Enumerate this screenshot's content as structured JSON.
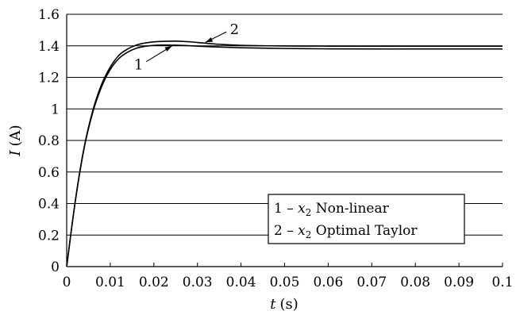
{
  "chart_data": {
    "type": "line",
    "title": "",
    "xlabel": "t (s)",
    "xlabel_italic": "t",
    "xlabel_unit": "(s)",
    "ylabel": "I (A)",
    "ylabel_italic": "I",
    "ylabel_unit": "(A)",
    "xlim": [
      0,
      0.1
    ],
    "ylim": [
      0,
      1.6
    ],
    "xticks": [
      0,
      0.01,
      0.02,
      0.03,
      0.04,
      0.05,
      0.06,
      0.07,
      0.08,
      0.09,
      0.1
    ],
    "xtick_labels": [
      "0",
      "0.01",
      "0.02",
      "0.03",
      "0.04",
      "0.05",
      "0.06",
      "0.07",
      "0.08",
      "0.09",
      "0.1"
    ],
    "yticks": [
      0,
      0.2,
      0.4,
      0.6,
      0.8,
      1,
      1.2,
      1.4,
      1.6
    ],
    "ytick_labels": [
      "0",
      "0.2",
      "0.4",
      "0.6",
      "0.8",
      "1",
      "1.2",
      "1.4",
      "1.6"
    ],
    "grid": "horizontal",
    "legend_position": "lower-right",
    "series": [
      {
        "name": "1 – x2 Non-linear",
        "label": "1",
        "legend_prefix": "1 –",
        "legend_var": "x",
        "legend_sub": "2",
        "legend_suffix": "Non-linear",
        "color": "#000000",
        "x": [
          0,
          0.002,
          0.004,
          0.006,
          0.008,
          0.01,
          0.012,
          0.014,
          0.016,
          0.018,
          0.02,
          0.022,
          0.025,
          0.028,
          0.03,
          0.035,
          0.04,
          0.05,
          0.06,
          0.07,
          0.08,
          0.09,
          0.1
        ],
        "y": [
          0,
          0.42,
          0.75,
          0.98,
          1.14,
          1.25,
          1.32,
          1.36,
          1.385,
          1.397,
          1.403,
          1.405,
          1.404,
          1.401,
          1.398,
          1.392,
          1.388,
          1.383,
          1.381,
          1.38,
          1.38,
          1.38,
          1.38
        ]
      },
      {
        "name": "2 – x2 Optimal Taylor",
        "label": "2",
        "legend_prefix": "2 –",
        "legend_var": "x",
        "legend_sub": "2",
        "legend_suffix": "Optimal Taylor",
        "color": "#000000",
        "x": [
          0,
          0.002,
          0.004,
          0.006,
          0.008,
          0.01,
          0.012,
          0.014,
          0.016,
          0.018,
          0.02,
          0.022,
          0.025,
          0.028,
          0.03,
          0.035,
          0.04,
          0.05,
          0.06,
          0.07,
          0.08,
          0.09,
          0.1
        ],
        "y": [
          0,
          0.42,
          0.755,
          0.99,
          1.155,
          1.265,
          1.34,
          1.38,
          1.405,
          1.418,
          1.425,
          1.428,
          1.43,
          1.426,
          1.421,
          1.41,
          1.403,
          1.399,
          1.398,
          1.398,
          1.398,
          1.398,
          1.398
        ]
      }
    ],
    "annotations": [
      {
        "text": "1",
        "series": 0,
        "at_x": 0.0245,
        "label_x": 0.0165,
        "label_y": 1.28
      },
      {
        "text": "2",
        "series": 1,
        "at_x": 0.0315,
        "label_x": 0.0385,
        "label_y": 1.505
      }
    ]
  }
}
